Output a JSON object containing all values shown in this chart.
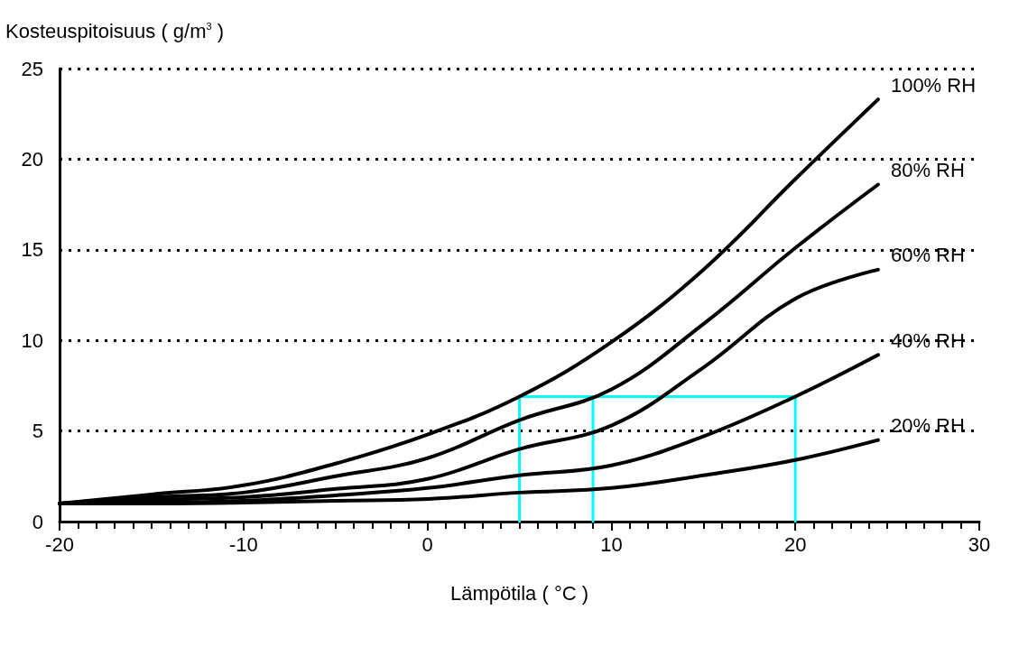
{
  "chart_data": {
    "type": "line",
    "xlabel": "Lämpötila ( °C )",
    "ylabel": "Kosteuspitoisuus ( g/m$^{3}$ )",
    "x": [
      -20,
      -15,
      -10,
      -5,
      0,
      5,
      10,
      15,
      20,
      24.5
    ],
    "series": [
      {
        "name": "100% RH",
        "color": "#000000",
        "values": [
          1.0,
          1.5,
          2.0,
          3.2,
          4.8,
          6.9,
          9.9,
          13.9,
          18.9,
          23.3
        ]
      },
      {
        "name": "80% RH",
        "color": "#000000",
        "values": [
          1.0,
          1.35,
          1.6,
          2.5,
          3.5,
          5.6,
          7.3,
          10.9,
          15.1,
          18.6
        ]
      },
      {
        "name": "60% RH",
        "color": "#000000",
        "values": [
          1.0,
          1.2,
          1.35,
          1.8,
          2.35,
          4.0,
          5.3,
          8.5,
          12.3,
          13.9
        ]
      },
      {
        "name": "40% RH",
        "color": "#000000",
        "values": [
          1.0,
          1.05,
          1.15,
          1.45,
          1.85,
          2.55,
          3.1,
          4.7,
          6.9,
          9.2
        ]
      },
      {
        "name": "20% RH",
        "color": "#000000",
        "values": [
          1.0,
          1.0,
          1.05,
          1.15,
          1.25,
          1.6,
          1.85,
          2.55,
          3.4,
          4.5
        ]
      },
      {
        "color": "#00ffff",
        "x": [
          5,
          5,
          20,
          20
        ],
        "values": [
          0,
          6.9,
          6.9,
          0
        ]
      },
      {
        "color": "#00ffff",
        "x": [
          9,
          9
        ],
        "values": [
          0,
          6.9
        ]
      }
    ],
    "xlim": [
      -20,
      30
    ],
    "xticks": [
      -20,
      -10,
      0,
      10,
      20,
      30
    ],
    "ylim": [
      0,
      25
    ],
    "yticks": [
      0,
      5,
      10,
      15,
      20,
      25
    ],
    "grid": "y",
    "marker": "none",
    "line_style": "solid"
  }
}
